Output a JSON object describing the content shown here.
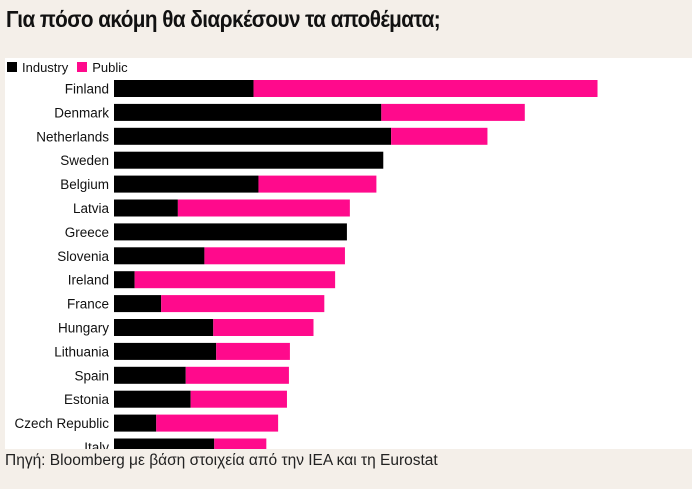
{
  "title": "Για πόσο ακόμη θα διαρκέσουν τα αποθέματα;",
  "source": "Πηγή: Bloomberg με βάση στοιχεία από την IEA και τη Eurostat",
  "colors": {
    "industry": "#000000",
    "public": "#ff0a8c",
    "background": "#f4efe9",
    "panel": "#ffffff"
  },
  "chart_data": {
    "type": "bar",
    "orientation": "horizontal",
    "stacked": true,
    "legend_position": "top-left",
    "grid": false,
    "xlim": [
      0,
      580
    ],
    "categories": [
      "Finland",
      "Denmark",
      "Netherlands",
      "Sweden",
      "Belgium",
      "Latvia",
      "Greece",
      "Slovenia",
      "Ireland",
      "France",
      "Hungary",
      "Lithuania",
      "Spain",
      "Estonia",
      "Czech Republic",
      "Italy"
    ],
    "series": [
      {
        "name": "Industry",
        "color": "#000000",
        "values": [
          142,
          272,
          282,
          274,
          147,
          65,
          237,
          92,
          21,
          48,
          101,
          104,
          73,
          78,
          43,
          102
        ]
      },
      {
        "name": "Public",
        "color": "#ff0a8c",
        "values": [
          350,
          146,
          98,
          0,
          120,
          175,
          0,
          143,
          204,
          166,
          102,
          75,
          105,
          98,
          124,
          53
        ]
      }
    ]
  }
}
